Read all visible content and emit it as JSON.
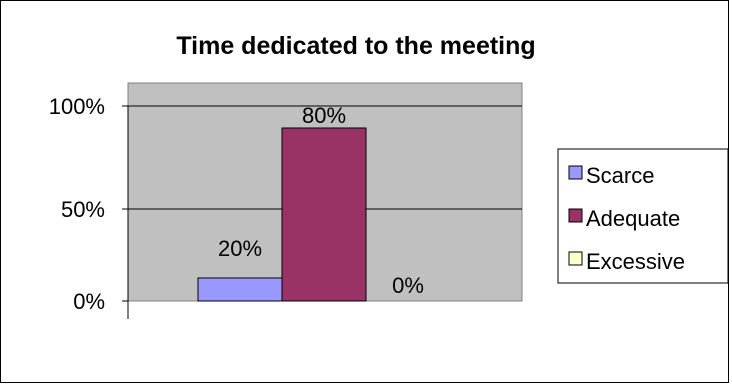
{
  "chart_data": {
    "type": "bar",
    "title": "Time dedicated to the meeting",
    "xlabel": "",
    "ylabel": "",
    "ylim": [
      0,
      100
    ],
    "yticks": [
      "0%",
      "50%",
      "100%"
    ],
    "grid": true,
    "legend_position": "right",
    "series": [
      {
        "name": "Scarce",
        "value": 20,
        "label": "20%",
        "color": "#9999ff"
      },
      {
        "name": "Adequate",
        "value": 80,
        "label": "80%",
        "color": "#993366"
      },
      {
        "name": "Excessive",
        "value": 0,
        "label": "0%",
        "color": "#ffffcc"
      }
    ],
    "plot_background": "#c0c0c0"
  }
}
